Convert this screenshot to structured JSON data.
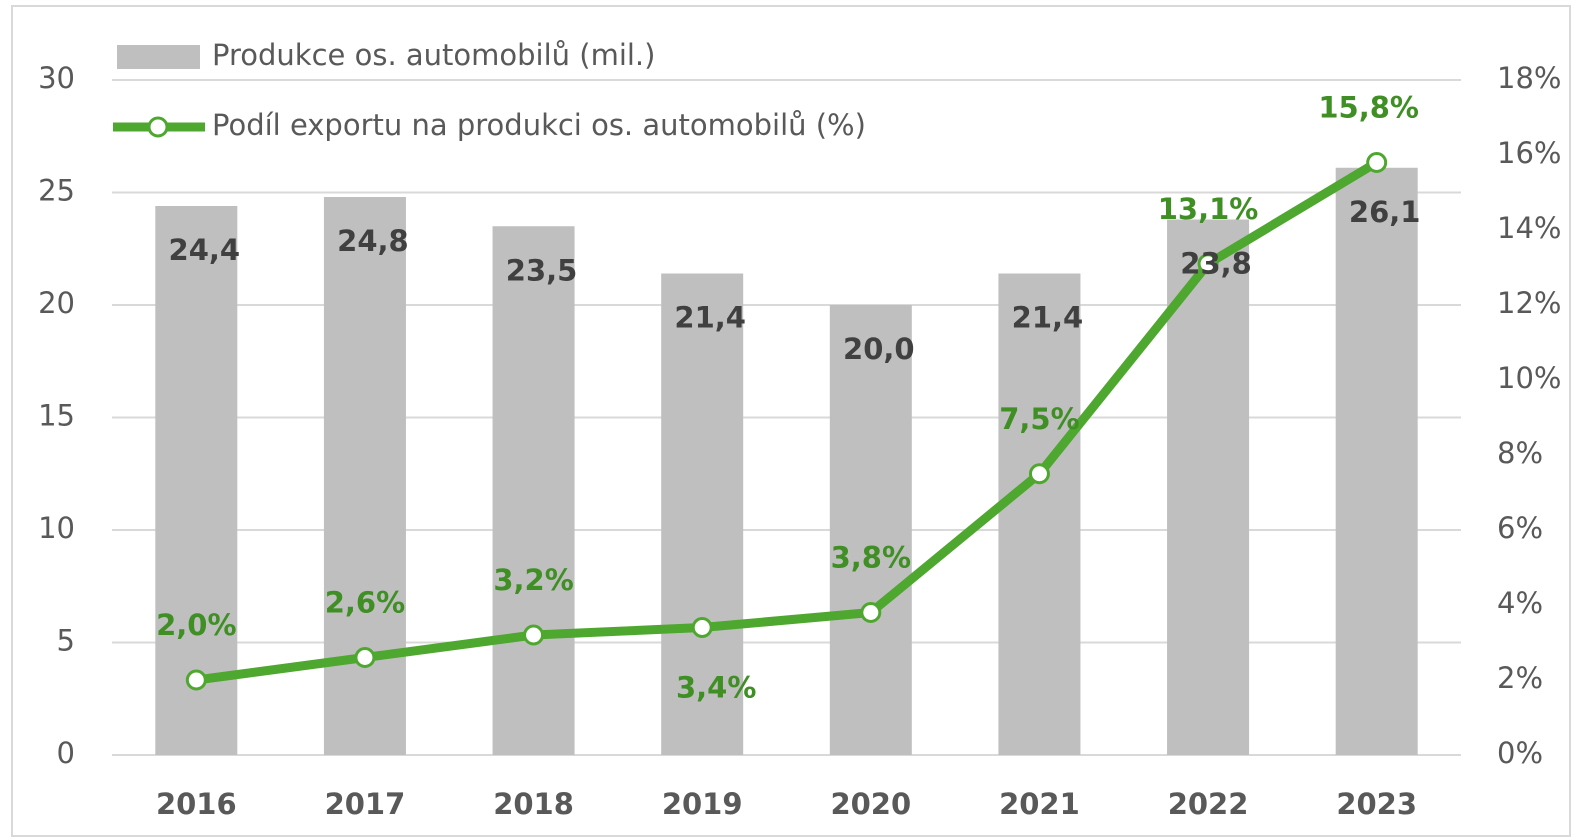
{
  "chart_data": {
    "type": "bar",
    "categories": [
      "2016",
      "2017",
      "2018",
      "2019",
      "2020",
      "2021",
      "2022",
      "2023"
    ],
    "series": [
      {
        "name": "Produkce os. automobilů (mil.)",
        "type": "bar",
        "color": "#bfbfbf",
        "values": [
          24.4,
          24.8,
          23.5,
          21.4,
          20.0,
          21.4,
          23.8,
          26.1
        ],
        "value_labels": [
          "24,4",
          "24,8",
          "23,5",
          "21,4",
          "20,0",
          "21,4",
          "23,8",
          "26,1"
        ]
      },
      {
        "name": "Podíl exportu na produkci os. automobilů (%)",
        "type": "line",
        "axis": "y2",
        "color": "#4ea72e",
        "values": [
          2.0,
          2.6,
          3.2,
          3.4,
          3.8,
          7.5,
          13.1,
          15.8
        ],
        "value_labels": [
          "2,0%",
          "2,6%",
          "3,2%",
          "3,4%",
          "3,8%",
          "7,5%",
          "13,1%",
          "15,8%"
        ]
      }
    ],
    "ylim": [
      0,
      30
    ],
    "yticks": [
      0,
      5,
      10,
      15,
      20,
      25,
      30
    ],
    "y2lim": [
      0,
      18
    ],
    "y2ticks": [
      {
        "value": 0,
        "label": "0%"
      },
      {
        "value": 2,
        "label": "2%"
      },
      {
        "value": 4,
        "label": "4%"
      },
      {
        "value": 6,
        "label": "6%"
      },
      {
        "value": 8,
        "label": "8%"
      },
      {
        "value": 10,
        "label": "10%"
      },
      {
        "value": 12,
        "label": "12%"
      },
      {
        "value": 14,
        "label": "14%"
      },
      {
        "value": 16,
        "label": "16%"
      },
      {
        "value": 18,
        "label": "18%"
      }
    ],
    "grid": true,
    "legend": "top-left"
  }
}
